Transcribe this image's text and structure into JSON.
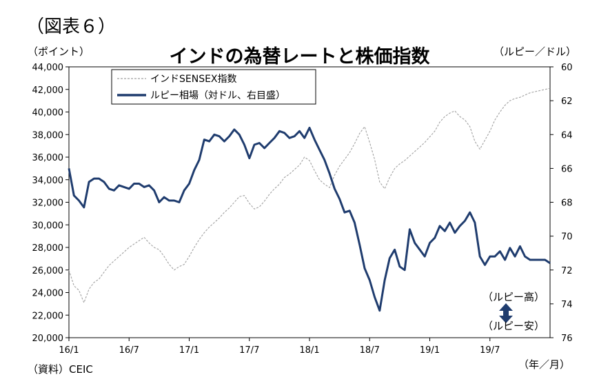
{
  "figure_label": "（図表６）",
  "source_note": "（資料）CEIC",
  "chart_data": {
    "type": "line",
    "title": "インドの為替レートと株価指数",
    "left_axis": {
      "label": "（ポイント）",
      "ylim": [
        20000,
        44000
      ],
      "ticks": [
        20000,
        22000,
        24000,
        26000,
        28000,
        30000,
        32000,
        34000,
        36000,
        38000,
        40000,
        42000,
        44000
      ],
      "tick_labels": [
        "20,000",
        "22,000",
        "24,000",
        "26,000",
        "28,000",
        "30,000",
        "32,000",
        "34,000",
        "36,000",
        "38,000",
        "40,000",
        "42,000",
        "44,000"
      ]
    },
    "right_axis": {
      "label": "（ルピー／ドル）",
      "ylim": [
        60,
        76
      ],
      "inverted": true,
      "ticks": [
        60,
        62,
        64,
        66,
        68,
        70,
        72,
        74,
        76
      ]
    },
    "x_axis": {
      "label": "（年／月）",
      "tick_labels": [
        "16/1",
        "16/7",
        "17/1",
        "17/7",
        "18/1",
        "18/7",
        "19/1",
        "19/7"
      ],
      "tick_positions": [
        0,
        6,
        12,
        18,
        24,
        30,
        36,
        42
      ],
      "range": [
        0,
        48
      ]
    },
    "legend": {
      "placement": "top-left",
      "entries": [
        "インドSENSEX指数",
        "ルピー相場（対ドル、右目盛）"
      ]
    },
    "annotation": {
      "top": "（ルピー高）",
      "bottom": "（ルピー安）",
      "arrow_color": "#1f3c6e"
    },
    "colors": {
      "sensex": "#a0a0a0",
      "rupee": "#1f3c6e"
    },
    "series": [
      {
        "name": "インドSENSEX指数",
        "axis": "left",
        "style": "dashed",
        "x": [
          0,
          0.5,
          1,
          1.5,
          2,
          2.5,
          3,
          3.5,
          4,
          4.5,
          5,
          5.5,
          6,
          6.5,
          7,
          7.5,
          8,
          8.5,
          9,
          9.5,
          10,
          10.5,
          11,
          11.5,
          12,
          12.5,
          13,
          13.5,
          14,
          14.5,
          15,
          15.5,
          16,
          16.5,
          17,
          17.5,
          18,
          18.5,
          19,
          19.5,
          20,
          20.5,
          21,
          21.5,
          22,
          22.5,
          23,
          23.5,
          24,
          24.5,
          25,
          25.5,
          26,
          26.5,
          27,
          27.5,
          28,
          28.5,
          29,
          29.5,
          30,
          30.5,
          31,
          31.5,
          32,
          32.5,
          33,
          33.5,
          34,
          34.5,
          35,
          35.5,
          36,
          36.5,
          37,
          37.5,
          38,
          38.5,
          39,
          39.5,
          40,
          40.5,
          41,
          41.5,
          42,
          42.5,
          43,
          43.5,
          44,
          44.5,
          45,
          45.5,
          46,
          46.5,
          47,
          47.5,
          48
        ],
        "values": [
          26000,
          24600,
          24200,
          23100,
          24300,
          24900,
          25200,
          25800,
          26400,
          26800,
          27200,
          27600,
          28000,
          28300,
          28600,
          28900,
          28400,
          28000,
          27800,
          27200,
          26500,
          26000,
          26300,
          26500,
          27200,
          28000,
          28700,
          29300,
          29800,
          30200,
          30600,
          31100,
          31500,
          32000,
          32500,
          32600,
          31900,
          31400,
          31600,
          32100,
          32700,
          33200,
          33600,
          34200,
          34500,
          34900,
          35300,
          36000,
          35700,
          34800,
          34000,
          33600,
          33300,
          34400,
          35200,
          35800,
          36400,
          37200,
          38100,
          38700,
          37300,
          35800,
          33800,
          33200,
          34200,
          35000,
          35400,
          35700,
          36100,
          36500,
          36900,
          37300,
          37800,
          38300,
          39100,
          39600,
          39900,
          40100,
          39600,
          39300,
          38700,
          37400,
          36700,
          37500,
          38300,
          39300,
          40000,
          40600,
          41000,
          41200,
          41300,
          41500,
          41700,
          41800,
          41900,
          42000,
          42100
        ]
      },
      {
        "name": "ルピー相場（対ドル、右目盛）",
        "axis": "right",
        "style": "solid",
        "x": [
          0,
          0.5,
          1,
          1.5,
          2,
          2.5,
          3,
          3.5,
          4,
          4.5,
          5,
          5.5,
          6,
          6.5,
          7,
          7.5,
          8,
          8.5,
          9,
          9.5,
          10,
          10.5,
          11,
          11.5,
          12,
          12.5,
          13,
          13.5,
          14,
          14.5,
          15,
          15.5,
          16,
          16.5,
          17,
          17.5,
          18,
          18.5,
          19,
          19.5,
          20,
          20.5,
          21,
          21.5,
          22,
          22.5,
          23,
          23.5,
          24,
          24.5,
          25,
          25.5,
          26,
          26.5,
          27,
          27.5,
          28,
          28.5,
          29,
          29.5,
          30,
          30.5,
          31,
          31.5,
          32,
          32.5,
          33,
          33.5,
          34,
          34.5,
          35,
          35.5,
          36,
          36.5,
          37,
          37.5,
          38,
          38.5,
          39,
          39.5,
          40,
          40.5,
          41,
          41.5,
          42,
          42.5,
          43,
          43.5,
          44,
          44.5,
          45,
          45.5,
          46,
          46.5,
          47,
          47.5,
          48
        ],
        "values": [
          66.0,
          67.6,
          67.9,
          68.3,
          66.8,
          66.6,
          66.6,
          66.8,
          67.2,
          67.3,
          67.0,
          67.1,
          67.2,
          66.9,
          66.9,
          67.1,
          67.0,
          67.3,
          68.0,
          67.7,
          67.9,
          67.9,
          68.0,
          67.3,
          66.9,
          66.1,
          65.5,
          64.3,
          64.4,
          64.0,
          64.1,
          64.4,
          64.1,
          63.7,
          64.0,
          64.6,
          65.4,
          64.6,
          64.5,
          64.8,
          64.5,
          64.2,
          63.8,
          63.9,
          64.2,
          64.1,
          63.8,
          64.2,
          63.6,
          64.3,
          64.9,
          65.5,
          66.3,
          67.2,
          67.8,
          68.6,
          68.5,
          69.2,
          70.5,
          71.9,
          72.6,
          73.6,
          74.4,
          72.6,
          71.3,
          70.8,
          71.8,
          72.0,
          69.6,
          70.4,
          70.8,
          71.2,
          70.4,
          70.1,
          69.4,
          69.7,
          69.2,
          69.8,
          69.4,
          69.1,
          68.6,
          69.2,
          71.2,
          71.7,
          71.2,
          71.2,
          70.9,
          71.4,
          70.7,
          71.2,
          70.6,
          71.2,
          71.4,
          71.4,
          71.4,
          71.4,
          71.6
        ]
      }
    ]
  }
}
